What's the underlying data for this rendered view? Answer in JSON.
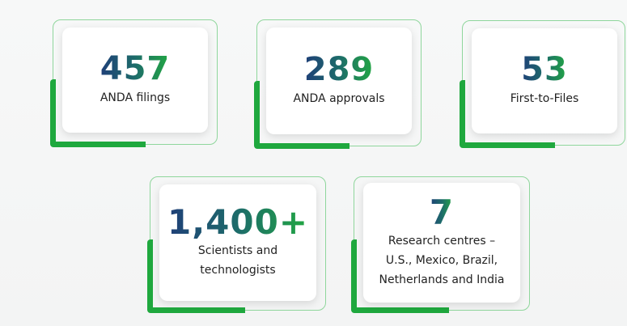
{
  "stats": [
    {
      "value": "457",
      "label": "ANDA filings"
    },
    {
      "value": "289",
      "label": "ANDA approvals"
    },
    {
      "value": "53",
      "label": "First-to-Files"
    },
    {
      "value": "1,400+",
      "label": "Scientists and technologists"
    },
    {
      "value": "7",
      "label": "Research centres – U.S., Mexico, Brazil, Netherlands and India"
    }
  ],
  "colors": {
    "accent": "#1fa83e",
    "frame": "#8fd69c",
    "number_start": "#1f3f78",
    "number_end": "#22a743"
  }
}
